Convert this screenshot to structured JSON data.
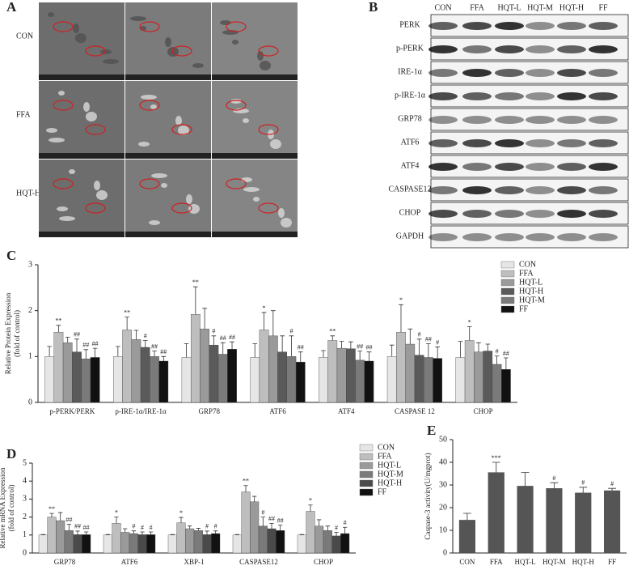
{
  "panel_a": {
    "label": "A",
    "rows": [
      "CON",
      "FFA",
      "HQT-H"
    ]
  },
  "panel_b": {
    "label": "B",
    "columns": [
      "CON",
      "FFA",
      "HQT-L",
      "HQT-M",
      "HQT-H",
      "FF"
    ],
    "rows": [
      "PERK",
      "p-PERK",
      "IRE-1α",
      "p-IRE-1α",
      "GRP78",
      "ATF6",
      "ATF4",
      "CASPASE12",
      "CHOP",
      "GAPDH"
    ]
  },
  "chart_data": [
    {
      "type": "bar",
      "panel_label": "C",
      "ylabel": [
        "Relative  Protein Expression",
        "(fold of control)"
      ],
      "categories": [
        "p-PERK/PERK",
        "p-IRE-1α/IRE-1α",
        "GRP78",
        "ATF6",
        "ATF4",
        "CASPASE 12",
        "CHOP"
      ],
      "ylim": [
        0,
        3
      ],
      "yticks": [
        0,
        1,
        2,
        3
      ],
      "series": [
        {
          "name": "CON",
          "color": "#e6e6e6",
          "values": [
            1.0,
            1.0,
            0.98,
            0.98,
            0.98,
            1.0,
            0.98
          ],
          "errors": [
            0.22,
            0.22,
            0.3,
            0.3,
            0.15,
            0.25,
            0.35
          ],
          "annotations": [
            null,
            null,
            null,
            null,
            null,
            null,
            null
          ]
        },
        {
          "name": "FFA",
          "color": "#bebebe",
          "values": [
            1.53,
            1.58,
            1.92,
            1.58,
            1.35,
            1.53,
            1.35
          ],
          "errors": [
            0.15,
            0.28,
            0.6,
            0.38,
            0.1,
            0.6,
            0.3
          ],
          "annotations": [
            "**",
            "**",
            "**",
            "*",
            "**",
            "*",
            "*"
          ]
        },
        {
          "name": "HQT-L",
          "color": "#9a9a9a",
          "values": [
            1.3,
            1.37,
            1.6,
            1.45,
            1.18,
            1.27,
            1.1
          ],
          "errors": [
            0.12,
            0.2,
            0.45,
            0.55,
            0.15,
            0.33,
            0.2
          ],
          "annotations": [
            null,
            null,
            null,
            null,
            null,
            null,
            null
          ]
        },
        {
          "name": "HQT-H",
          "color": "#5a5a5a",
          "values": [
            1.1,
            1.2,
            1.25,
            1.1,
            1.17,
            1.03,
            1.12
          ],
          "errors": [
            0.28,
            0.15,
            0.2,
            0.35,
            0.15,
            0.35,
            0.15
          ],
          "annotations": [
            "##",
            "#",
            "#",
            null,
            null,
            "#",
            null
          ]
        },
        {
          "name": "HQT-M",
          "color": "#7a7a7a",
          "values": [
            0.95,
            1.0,
            1.05,
            1.0,
            0.92,
            0.98,
            0.83
          ],
          "errors": [
            0.2,
            0.12,
            0.25,
            0.45,
            0.2,
            0.3,
            0.18
          ],
          "annotations": [
            "##",
            "##",
            "##",
            "#",
            "##",
            "##",
            "#"
          ]
        },
        {
          "name": "FF",
          "color": "#111111",
          "values": [
            0.98,
            0.9,
            1.16,
            0.88,
            0.9,
            0.96,
            0.72
          ],
          "errors": [
            0.2,
            0.1,
            0.16,
            0.22,
            0.2,
            0.25,
            0.25
          ],
          "annotations": [
            "##",
            "##",
            "##",
            "##",
            "##",
            "#",
            "##"
          ]
        }
      ]
    },
    {
      "type": "bar",
      "panel_label": "D",
      "ylabel": [
        "Relative mRNA Expression",
        "(fold of control)"
      ],
      "categories": [
        "GRP78",
        "ATF6",
        "XBP-1",
        "CASPASE12",
        "CHOP"
      ],
      "ylim": [
        0,
        5
      ],
      "yticks": [
        0,
        1,
        2,
        3,
        4,
        5
      ],
      "series": [
        {
          "name": "CON",
          "color": "#e6e6e6",
          "values": [
            1.0,
            1.0,
            1.0,
            1.0,
            1.0
          ],
          "errors": [
            0.03,
            0.03,
            0.03,
            0.03,
            0.03
          ],
          "annotations": [
            null,
            null,
            null,
            null,
            null
          ]
        },
        {
          "name": "FFA",
          "color": "#bebebe",
          "values": [
            2.0,
            1.65,
            1.68,
            3.4,
            2.32
          ],
          "errors": [
            0.2,
            0.35,
            0.3,
            0.35,
            0.35
          ],
          "annotations": [
            "**",
            "*",
            "*",
            "**",
            "*"
          ]
        },
        {
          "name": "HQT-L",
          "color": "#9a9a9a",
          "values": [
            1.8,
            1.15,
            1.35,
            2.85,
            1.5
          ],
          "errors": [
            0.45,
            0.2,
            0.15,
            0.3,
            0.35
          ],
          "annotations": [
            null,
            null,
            null,
            null,
            null
          ]
        },
        {
          "name": "HQT-M",
          "color": "#7a7a7a",
          "values": [
            1.25,
            1.08,
            1.25,
            1.5,
            1.25
          ],
          "errors": [
            0.35,
            0.15,
            0.12,
            0.5,
            0.25
          ],
          "annotations": [
            "##",
            "#",
            null,
            "#",
            null
          ]
        },
        {
          "name": "HQT-H",
          "color": "#4a4a4a",
          "values": [
            1.02,
            1.02,
            1.02,
            1.35,
            0.95
          ],
          "errors": [
            0.2,
            0.15,
            0.2,
            0.3,
            0.2
          ],
          "annotations": [
            "##",
            "#",
            "#",
            "##",
            "#"
          ]
        },
        {
          "name": "FF",
          "color": "#111111",
          "values": [
            1.02,
            1.02,
            1.08,
            1.25,
            1.08
          ],
          "errors": [
            0.15,
            0.15,
            0.15,
            0.3,
            0.35
          ],
          "annotations": [
            "##",
            "#",
            "#",
            "##",
            "#"
          ]
        }
      ]
    },
    {
      "type": "bar",
      "panel_label": "E",
      "ylabel": [
        "Caspase-3 activity(U/mgprot)"
      ],
      "categories": [
        "CON",
        "FFA",
        "HQT-L",
        "HQT-M",
        "HQT-H",
        "FF"
      ],
      "ylim": [
        0,
        50
      ],
      "yticks": [
        0,
        10,
        20,
        30,
        40,
        50
      ],
      "color": "#555555",
      "values": [
        14.5,
        35.5,
        29.5,
        28.5,
        26.5,
        27.5
      ],
      "errors": [
        3,
        4.5,
        6,
        2.5,
        2.5,
        1
      ],
      "annotations": [
        null,
        "***",
        null,
        "#",
        "#",
        "#"
      ]
    }
  ]
}
